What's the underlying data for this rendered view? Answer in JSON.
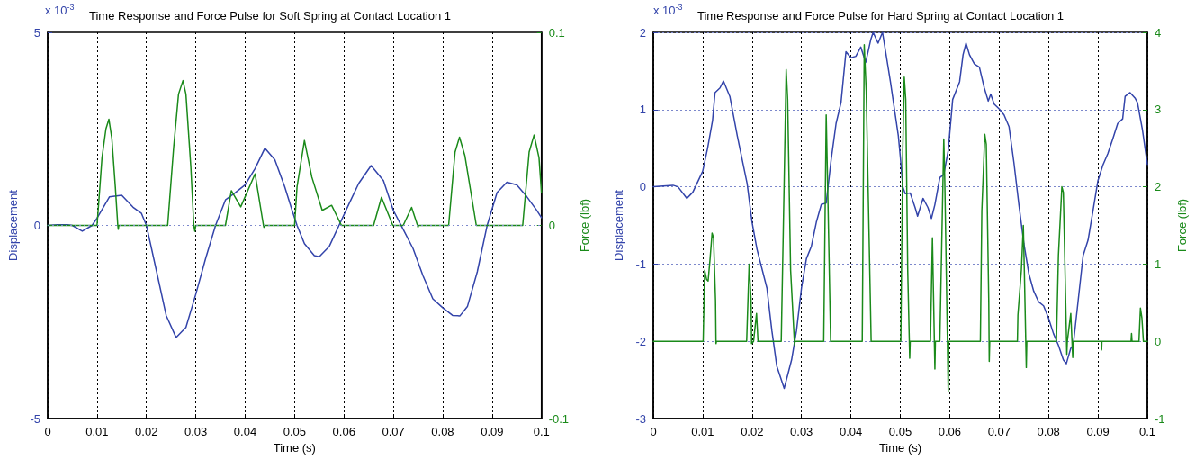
{
  "chart_data": [
    {
      "type": "line",
      "title": "Time Response and Force Pulse for Soft Spring at Contact Location 1",
      "xlabel": "Time (s)",
      "ylabel": "Displacement",
      "y2label": "Force (lbf)",
      "annotations": [
        "x 10$^{-3}$"
      ],
      "xlim": [
        0,
        0.1
      ],
      "xticks": [
        0,
        0.01,
        0.02,
        0.03,
        0.04,
        0.05,
        0.06,
        0.07,
        0.08,
        0.09,
        0.1
      ],
      "ylim": [
        -5,
        5
      ],
      "yticks": [
        -5,
        0,
        5
      ],
      "y2lim": [
        -0.1,
        0.1
      ],
      "y2ticks": [
        -0.1,
        0,
        0.1
      ],
      "grid": "x",
      "ref_lines": [
        {
          "axis": "y",
          "value": 0,
          "color": "#7c88cc",
          "line_style": "dotted"
        }
      ],
      "series": [
        {
          "color": "#3344aa",
          "x": [
            0,
            0.002,
            0.004,
            0.005,
            0.007,
            0.009,
            0.01,
            0.0125,
            0.015,
            0.0173,
            0.019,
            0.02,
            0.022,
            0.024,
            0.026,
            0.028,
            0.03,
            0.032,
            0.034,
            0.036,
            0.038,
            0.04,
            0.042,
            0.044,
            0.046,
            0.048,
            0.0495,
            0.0505,
            0.052,
            0.054,
            0.055,
            0.057,
            0.059,
            0.061,
            0.063,
            0.0655,
            0.068,
            0.07,
            0.072,
            0.074,
            0.076,
            0.078,
            0.08,
            0.082,
            0.0835,
            0.085,
            0.087,
            0.089,
            0.091,
            0.093,
            0.095,
            0.097,
            0.099,
            0.1
          ],
          "values": [
            0,
            0.02,
            0.02,
            0,
            -0.15,
            0,
            0.19,
            0.74,
            0.78,
            0.47,
            0.31,
            0,
            -1.16,
            -2.33,
            -2.9,
            -2.64,
            -1.78,
            -0.85,
            0,
            0.66,
            0.85,
            1.05,
            1.47,
            2.0,
            1.7,
            1.0,
            0.39,
            0,
            -0.47,
            -0.78,
            -0.81,
            -0.55,
            0,
            0.55,
            1.09,
            1.55,
            1.16,
            0.39,
            -0.1,
            -0.6,
            -1.3,
            -1.9,
            -2.13,
            -2.33,
            -2.34,
            -2.1,
            -1.2,
            0,
            0.85,
            1.12,
            1.05,
            0.75,
            0.4,
            0.2
          ]
        },
        {
          "color": "#1a8a1a",
          "axis": "y2",
          "x": [
            0,
            0.01,
            0.011,
            0.0118,
            0.0124,
            0.013,
            0.0137,
            0.0142,
            0.0143,
            0.0144,
            0.0243,
            0.0255,
            0.0265,
            0.0274,
            0.028,
            0.029,
            0.0296,
            0.0298,
            0.03,
            0.036,
            0.0372,
            0.0391,
            0.042,
            0.0437,
            0.0438,
            0.0439,
            0.05,
            0.0505,
            0.052,
            0.0535,
            0.0556,
            0.0575,
            0.0595,
            0.066,
            0.0676,
            0.0699,
            0.072,
            0.0737,
            0.0749,
            0.075,
            0.0751,
            0.0812,
            0.0825,
            0.0834,
            0.0845,
            0.0868,
            0.0962,
            0.0975,
            0.0985,
            0.0995,
            0.1
          ],
          "values": [
            0,
            0,
            0.035,
            0.05,
            0.055,
            0.045,
            0.02,
            0,
            -0.002,
            0,
            0,
            0.04,
            0.068,
            0.075,
            0.068,
            0.03,
            0,
            -0.003,
            0,
            0,
            0.018,
            0.0096,
            0.0267,
            0,
            -0.001,
            0,
            0,
            0.02,
            0.044,
            0.025,
            0.0078,
            0.0104,
            0,
            0,
            0.0146,
            0,
            0,
            0.0093,
            0,
            -0.001,
            0,
            0,
            0.038,
            0.0457,
            0.036,
            0,
            0,
            0.038,
            0.0468,
            0.035,
            0.017
          ]
        }
      ]
    },
    {
      "type": "line",
      "title": "Time Response and Force Pulse for Hard Spring at Contact Location 1",
      "xlabel": "Time (s)",
      "ylabel": "Displacement",
      "y2label": "Force (lbf)",
      "annotations": [
        "x 10$^{-3}$"
      ],
      "xlim": [
        0,
        0.1
      ],
      "xticks": [
        0,
        0.01,
        0.02,
        0.03,
        0.04,
        0.05,
        0.06,
        0.07,
        0.08,
        0.09,
        0.1
      ],
      "ylim": [
        -3,
        2
      ],
      "yticks": [
        -3,
        -2,
        -1,
        0,
        1,
        2
      ],
      "y2lim": [
        -1,
        4
      ],
      "y2ticks": [
        -1,
        0,
        1,
        2,
        3,
        4
      ],
      "grid": true,
      "series": [
        {
          "color": "#3344aa",
          "x": [
            0,
            0.002,
            0.004,
            0.005,
            0.0068,
            0.008,
            0.01,
            0.011,
            0.012,
            0.0125,
            0.0135,
            0.0142,
            0.0155,
            0.017,
            0.019,
            0.02,
            0.021,
            0.023,
            0.024,
            0.025,
            0.0265,
            0.028,
            0.029,
            0.03,
            0.031,
            0.032,
            0.033,
            0.034,
            0.035,
            0.036,
            0.037,
            0.038,
            0.039,
            0.04,
            0.041,
            0.042,
            0.043,
            0.044,
            0.0445,
            0.0455,
            0.0464,
            0.048,
            0.0496,
            0.05,
            0.0505,
            0.051,
            0.052,
            0.053,
            0.0535,
            0.0546,
            0.0556,
            0.0563,
            0.057,
            0.058,
            0.0588,
            0.0597,
            0.0606,
            0.062,
            0.0627,
            0.0633,
            0.064,
            0.065,
            0.066,
            0.067,
            0.0678,
            0.0683,
            0.069,
            0.07,
            0.071,
            0.072,
            0.073,
            0.074,
            0.075,
            0.076,
            0.077,
            0.078,
            0.079,
            0.08,
            0.081,
            0.082,
            0.083,
            0.0836,
            0.084,
            0.0845,
            0.085,
            0.086,
            0.087,
            0.088,
            0.089,
            0.09,
            0.091,
            0.092,
            0.093,
            0.094,
            0.095,
            0.0955,
            0.0965,
            0.0975,
            0.098,
            0.099,
            0.1
          ],
          "values": [
            0,
            0.01,
            0.02,
            0,
            -0.15,
            -0.07,
            0.2,
            0.5,
            0.86,
            1.22,
            1.28,
            1.37,
            1.17,
            0.66,
            0.04,
            -0.46,
            -0.81,
            -1.31,
            -1.86,
            -2.32,
            -2.61,
            -2.24,
            -1.86,
            -1.31,
            -0.93,
            -0.77,
            -0.46,
            -0.23,
            -0.21,
            0.35,
            0.82,
            1.09,
            1.75,
            1.67,
            1.69,
            1.81,
            1.61,
            1.9,
            2.0,
            1.86,
            2.0,
            1.36,
            0.66,
            0.39,
            0,
            -0.09,
            -0.08,
            -0.27,
            -0.38,
            -0.15,
            -0.27,
            -0.41,
            -0.23,
            0.12,
            0.16,
            0.47,
            1.13,
            1.36,
            1.71,
            1.86,
            1.71,
            1.59,
            1.55,
            1.28,
            1.11,
            1.2,
            1.07,
            1.01,
            0.93,
            0.78,
            0.31,
            -0.23,
            -0.73,
            -1.12,
            -1.35,
            -1.49,
            -1.54,
            -1.7,
            -1.9,
            -2.05,
            -2.24,
            -2.29,
            -2.2,
            -2.09,
            -2.05,
            -1.47,
            -0.89,
            -0.69,
            -0.31,
            0.08,
            0.28,
            0.43,
            0.62,
            0.82,
            0.88,
            1.17,
            1.22,
            1.15,
            1.09,
            0.74,
            0.29
          ]
        },
        {
          "color": "#1a8a1a",
          "axis": "y2",
          "x": [
            0,
            0.0101,
            0.0104,
            0.0108,
            0.0111,
            0.0115,
            0.0119,
            0.0122,
            0.0126,
            0.0127,
            0.0128,
            0.0189,
            0.0194,
            0.0198,
            0.0199,
            0.0203,
            0.0209,
            0.0212,
            0.0259,
            0.0265,
            0.0269,
            0.0272,
            0.0278,
            0.0286,
            0.0287,
            0.0345,
            0.035,
            0.0353,
            0.0359,
            0.0423,
            0.0427,
            0.0431,
            0.0441,
            0.0501,
            0.0505,
            0.0508,
            0.0511,
            0.0515,
            0.0519,
            0.052,
            0.0561,
            0.0565,
            0.057,
            0.0571,
            0.058,
            0.0588,
            0.059,
            0.0597,
            0.0598,
            0.0662,
            0.0665,
            0.0671,
            0.0674,
            0.0679,
            0.068,
            0.0681,
            0.0737,
            0.0738,
            0.0745,
            0.0749,
            0.0751,
            0.0755,
            0.0756,
            0.0816,
            0.082,
            0.0827,
            0.083,
            0.0837,
            0.0838,
            0.0845,
            0.0849,
            0.085,
            0.0907,
            0.09075,
            0.0908,
            0.0967,
            0.0968,
            0.0969,
            0.0983,
            0.0986,
            0.0989,
            0.0992,
            0.1
          ],
          "values": [
            0,
            0,
            0.92,
            0.8,
            0.78,
            1.07,
            1.4,
            1.34,
            0.53,
            -0.03,
            0,
            0,
            1.0,
            0.53,
            -0.03,
            0,
            0.36,
            0,
            0,
            2.08,
            3.52,
            3.13,
            0.92,
            -0.05,
            0,
            0,
            2.93,
            2.0,
            0,
            0,
            3.84,
            3.24,
            0,
            0,
            2.47,
            3.42,
            3.13,
            0.92,
            -0.22,
            0,
            0,
            1.34,
            -0.36,
            0,
            0,
            2.62,
            2.08,
            -0.65,
            0,
            0,
            1.69,
            2.68,
            2.55,
            0.53,
            -0.26,
            0,
            0,
            0.34,
            0.92,
            1.5,
            0.92,
            -0.34,
            0,
            0,
            1.11,
            2.0,
            1.93,
            -0.17,
            0,
            0.36,
            -0.21,
            0,
            0,
            -0.11,
            0,
            0,
            0.1,
            0,
            0,
            0.43,
            0.3,
            0,
            0
          ]
        }
      ]
    }
  ]
}
